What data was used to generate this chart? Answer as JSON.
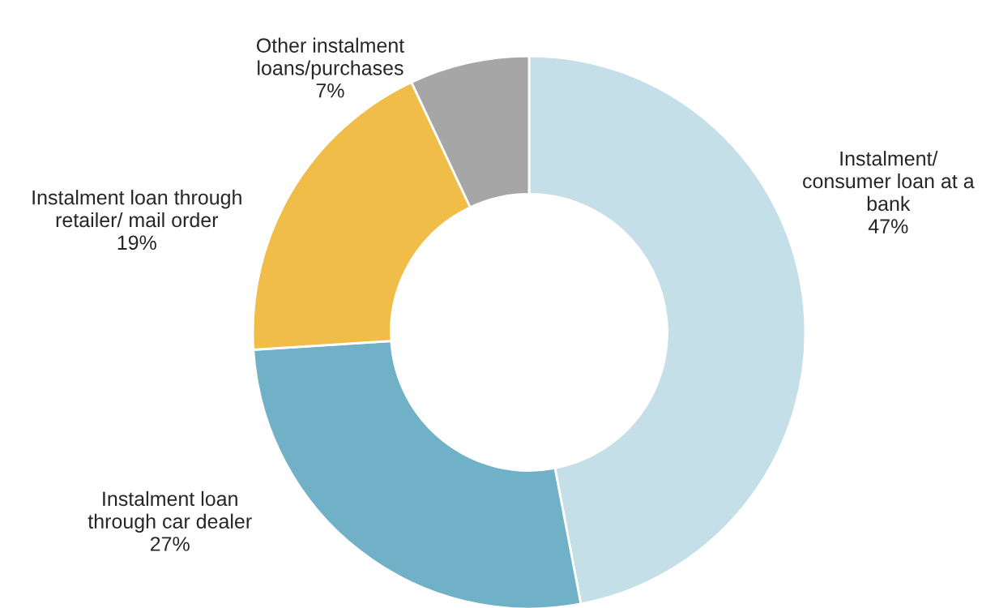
{
  "chart_data": {
    "type": "donut",
    "categories": [
      "Instalment/\nconsumer loan at a\nbank",
      "Instalment loan\nthrough car dealer",
      "Instalment loan through\nretailer/ mail order",
      "Other instalment\nloans/purchases"
    ],
    "values": [
      47,
      27,
      19,
      7
    ],
    "value_labels": [
      "47%",
      "27%",
      "19%",
      "7%"
    ],
    "colors": [
      "#c5dfe8",
      "#71b1c8",
      "#f0be48",
      "#a6a6a6"
    ],
    "legend": false
  }
}
